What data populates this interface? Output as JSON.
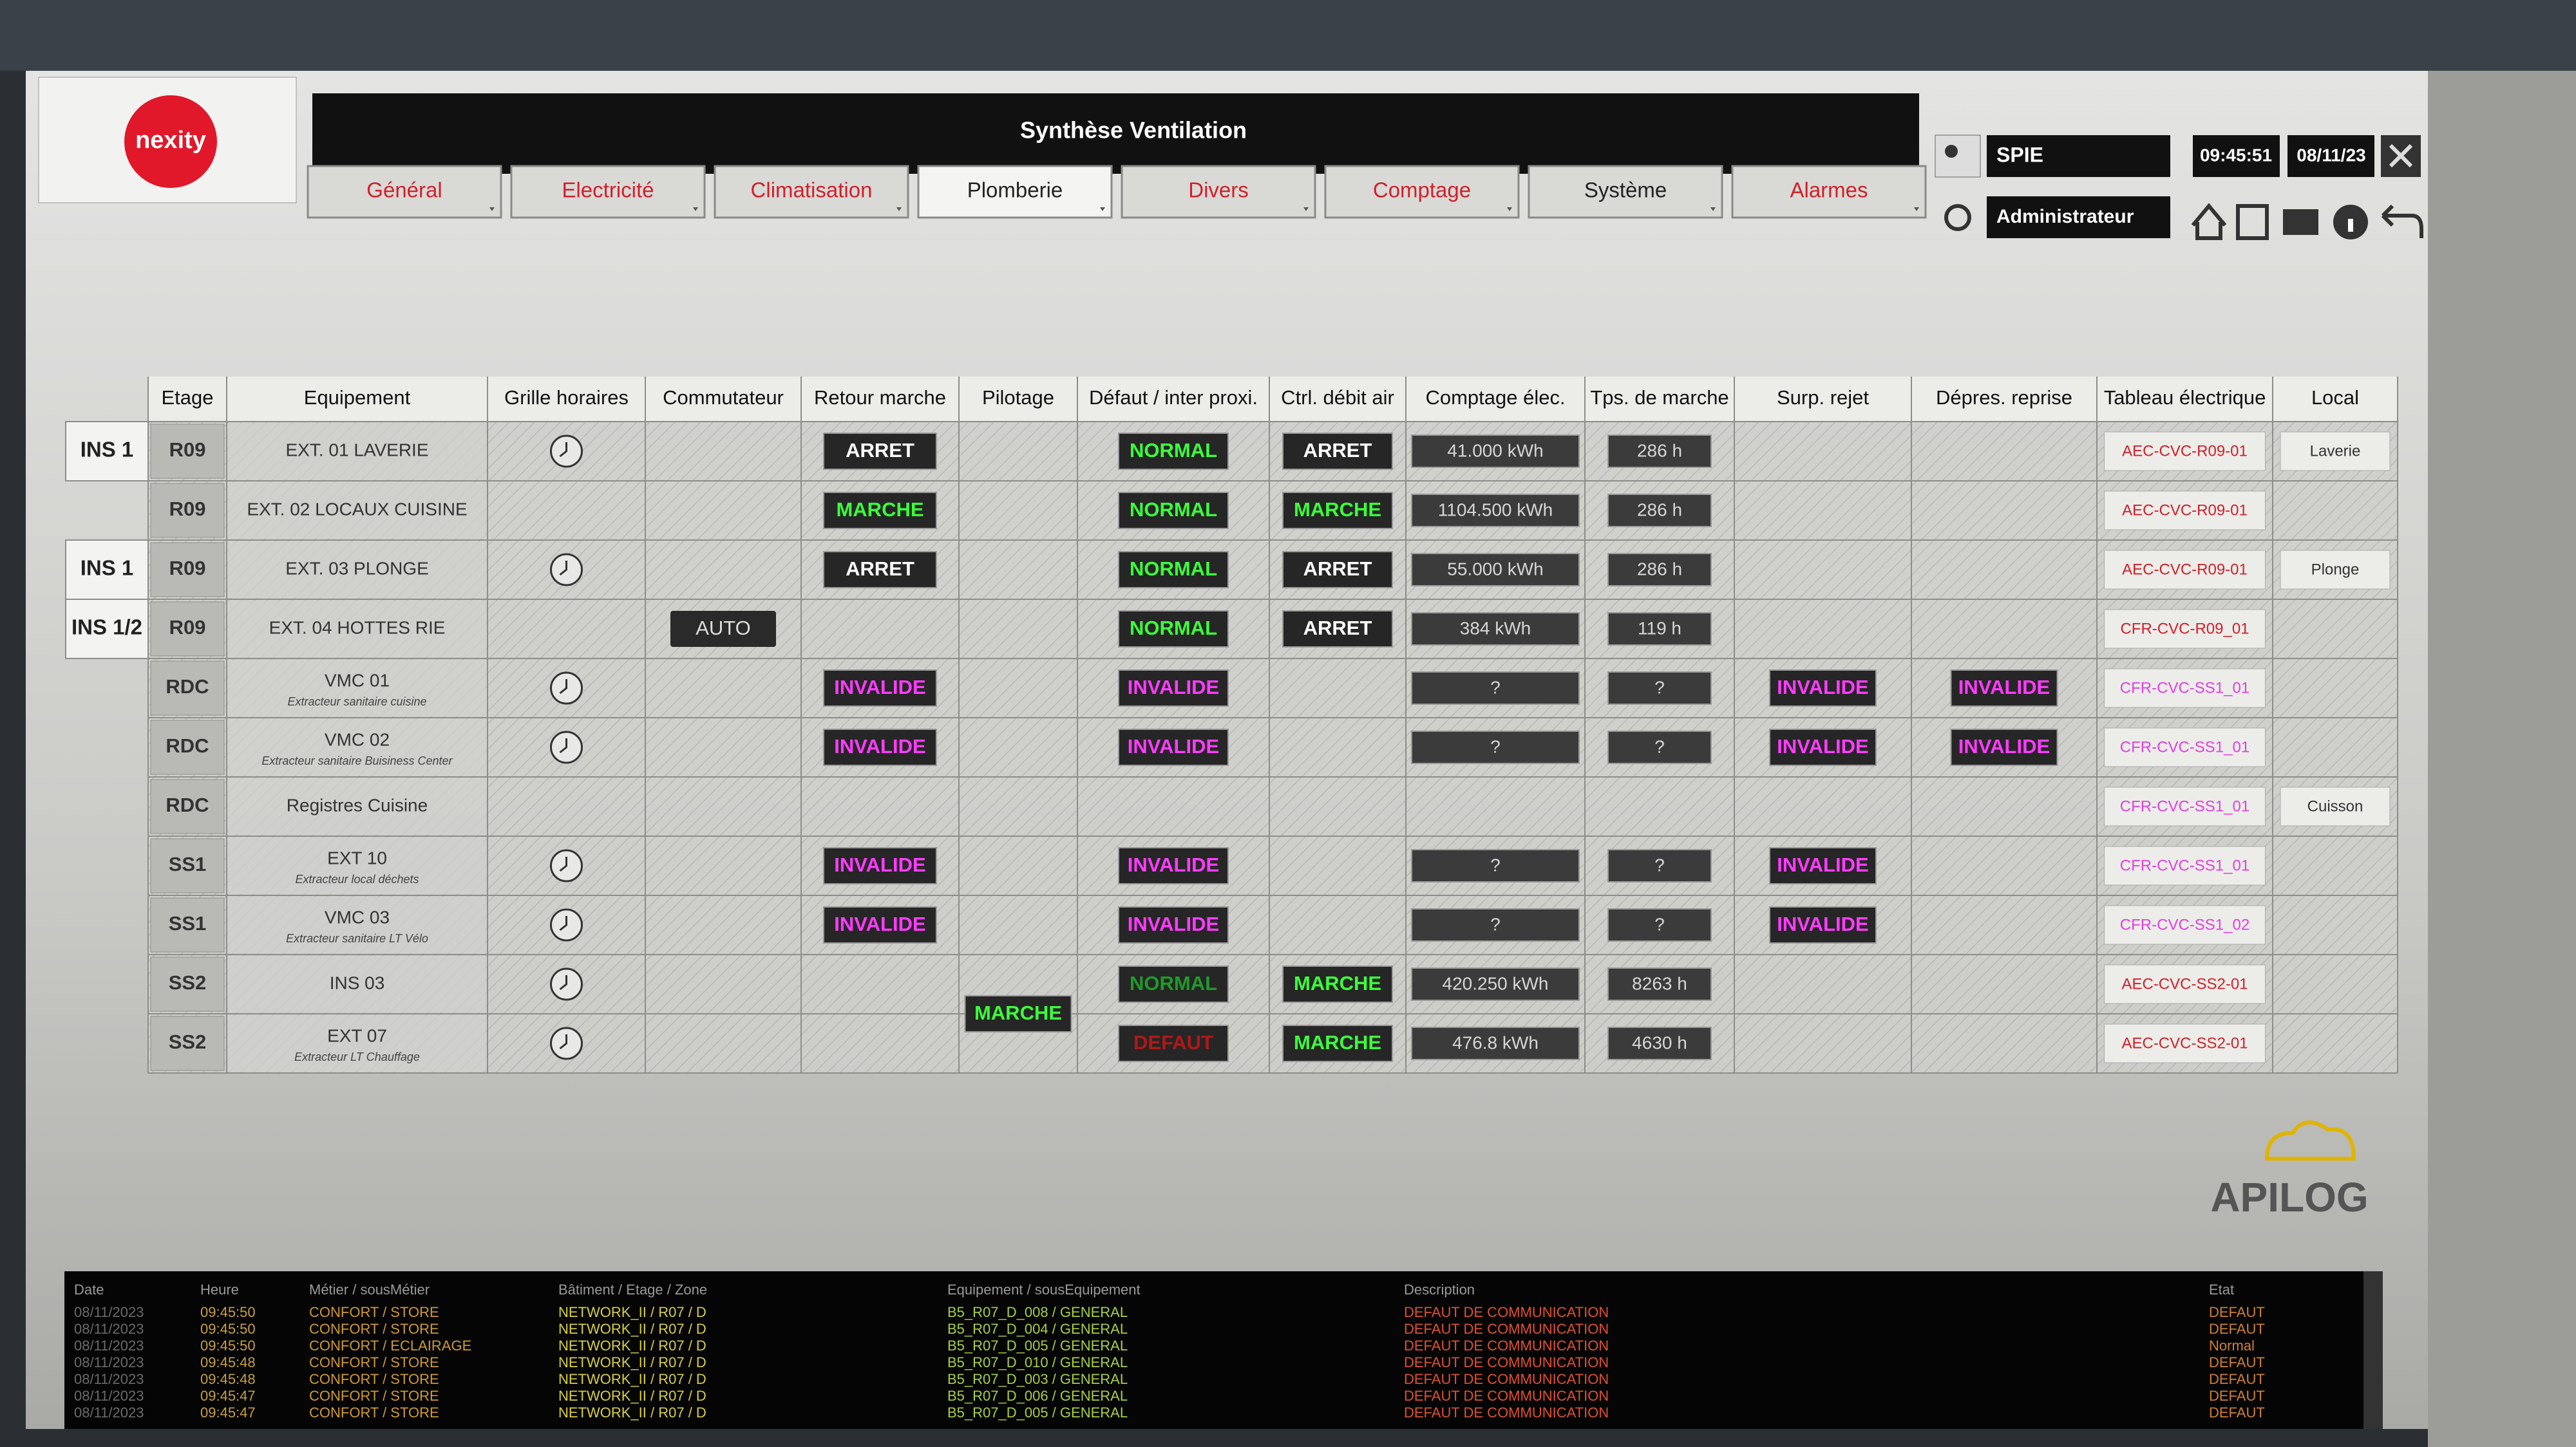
{
  "header": {
    "logo": "nexity",
    "title": "Synthèse Ventilation",
    "tabs": [
      {
        "label": "Général",
        "color": "#d0202a"
      },
      {
        "label": "Electricité",
        "color": "#d0202a"
      },
      {
        "label": "Climatisation",
        "color": "#d0202a"
      },
      {
        "label": "Plomberie",
        "color": "#222222"
      },
      {
        "label": "Divers",
        "color": "#d0202a"
      },
      {
        "label": "Comptage",
        "color": "#d0202a"
      },
      {
        "label": "Système",
        "color": "#222222"
      },
      {
        "label": "Alarmes",
        "color": "#d0202a"
      }
    ],
    "user": "SPIE",
    "role": "Administrateur",
    "time": "09:45:51",
    "date": "08/11/23"
  },
  "table": {
    "columns": [
      "Etage",
      "Equipement",
      "Grille horaires",
      "Commutateur",
      "Retour marche",
      "Pilotage",
      "Défaut / inter proxi.",
      "Ctrl. débit air",
      "Comptage élec.",
      "Tps. de marche",
      "Surp. rejet",
      "Dépres. reprise",
      "Tableau électrique",
      "Local"
    ],
    "rows": [
      {
        "ins": "INS 1",
        "etage": "R09",
        "equipement": "EXT. 01 LAVERIE",
        "clock": true,
        "retour": {
          "text": "ARRET",
          "color": "#ffffff"
        },
        "defaut": {
          "text": "NORMAL",
          "color": "#3cff3c"
        },
        "ctrl": {
          "text": "ARRET",
          "color": "#ffffff"
        },
        "comptage": "41.000 kWh",
        "tps": "286 h",
        "tableau": {
          "text": "AEC-CVC-R09-01",
          "color": "#d0202a"
        },
        "local": "Laverie"
      },
      {
        "etage": "R09",
        "equipement": "EXT. 02 LOCAUX CUISINE",
        "retour": {
          "text": "MARCHE",
          "color": "#3cff3c"
        },
        "defaut": {
          "text": "NORMAL",
          "color": "#3cff3c"
        },
        "ctrl": {
          "text": "MARCHE",
          "color": "#3cff3c"
        },
        "comptage": "1104.500 kWh",
        "tps": "286 h",
        "tableau": {
          "text": "AEC-CVC-R09-01",
          "color": "#d0202a"
        }
      },
      {
        "ins": "INS 1",
        "etage": "R09",
        "equipement": "EXT. 03 PLONGE",
        "clock": true,
        "retour": {
          "text": "ARRET",
          "color": "#ffffff"
        },
        "defaut": {
          "text": "NORMAL",
          "color": "#3cff3c"
        },
        "ctrl": {
          "text": "ARRET",
          "color": "#ffffff"
        },
        "comptage": "55.000 kWh",
        "tps": "286 h",
        "tableau": {
          "text": "AEC-CVC-R09-01",
          "color": "#d0202a"
        },
        "local": "Plonge"
      },
      {
        "ins": "INS 1/2",
        "etage": "R09",
        "equipement": "EXT. 04 HOTTES RIE",
        "commutateur": "AUTO",
        "defaut": {
          "text": "NORMAL",
          "color": "#3cff3c"
        },
        "ctrl": {
          "text": "ARRET",
          "color": "#ffffff"
        },
        "comptage": "384 kWh",
        "tps": "119 h",
        "tableau": {
          "text": "CFR-CVC-R09_01",
          "color": "#d0202a"
        }
      },
      {
        "etage": "RDC",
        "equipement": "VMC 01",
        "sub": "Extracteur sanitaire cuisine",
        "clock": true,
        "retour": {
          "text": "INVALIDE",
          "color": "#ff3cff"
        },
        "defaut": {
          "text": "INVALIDE",
          "color": "#ff3cff"
        },
        "comptage": "?",
        "tps": "?",
        "surp": {
          "text": "INVALIDE",
          "color": "#ff3cff"
        },
        "depres": {
          "text": "INVALIDE",
          "color": "#ff3cff"
        },
        "tableau": {
          "text": "CFR-CVC-SS1_01",
          "color": "#e040e0"
        }
      },
      {
        "etage": "RDC",
        "equipement": "VMC 02",
        "sub": "Extracteur sanitaire Buisiness Center",
        "clock": true,
        "retour": {
          "text": "INVALIDE",
          "color": "#ff3cff"
        },
        "defaut": {
          "text": "INVALIDE",
          "color": "#ff3cff"
        },
        "comptage": "?",
        "tps": "?",
        "surp": {
          "text": "INVALIDE",
          "color": "#ff3cff"
        },
        "depres": {
          "text": "INVALIDE",
          "color": "#ff3cff"
        },
        "tableau": {
          "text": "CFR-CVC-SS1_01",
          "color": "#e040e0"
        }
      },
      {
        "etage": "RDC",
        "equipement": "Registres Cuisine",
        "tableau": {
          "text": "CFR-CVC-SS1_01",
          "color": "#e040e0"
        },
        "local": "Cuisson"
      },
      {
        "etage": "SS1",
        "equipement": "EXT 10",
        "sub": "Extracteur local déchets",
        "clock": true,
        "retour": {
          "text": "INVALIDE",
          "color": "#ff3cff"
        },
        "defaut": {
          "text": "INVALIDE",
          "color": "#ff3cff"
        },
        "comptage": "?",
        "tps": "?",
        "surp": {
          "text": "INVALIDE",
          "color": "#ff3cff"
        },
        "tableau": {
          "text": "CFR-CVC-SS1_01",
          "color": "#e040e0"
        }
      },
      {
        "etage": "SS1",
        "equipement": "VMC 03",
        "sub": "Extracteur sanitaire LT Vélo",
        "clock": true,
        "retour": {
          "text": "INVALIDE",
          "color": "#ff3cff"
        },
        "defaut": {
          "text": "INVALIDE",
          "color": "#ff3cff"
        },
        "comptage": "?",
        "tps": "?",
        "surp": {
          "text": "INVALIDE",
          "color": "#ff3cff"
        },
        "tableau": {
          "text": "CFR-CVC-SS1_02",
          "color": "#e040e0"
        }
      },
      {
        "etage": "SS2",
        "equipement": "INS 03",
        "clock": true,
        "pilotage": {
          "text": "MARCHE",
          "color": "#3cff3c"
        },
        "defaut": {
          "text": "NORMAL",
          "color": "#1f9a2a"
        },
        "ctrl": {
          "text": "MARCHE",
          "color": "#3cff3c"
        },
        "comptage": "420.250 kWh",
        "tps": "8263 h",
        "tableau": {
          "text": "AEC-CVC-SS2-01",
          "color": "#d0202a"
        }
      },
      {
        "etage": "SS2",
        "equipement": "EXT 07",
        "sub": "Extracteur LT Chauffage",
        "clock": true,
        "defaut": {
          "text": "DEFAUT",
          "color": "#b01818"
        },
        "ctrl": {
          "text": "MARCHE",
          "color": "#3cff3c"
        },
        "comptage": "476.8 kWh",
        "tps": "4630 h",
        "tableau": {
          "text": "AEC-CVC-SS2-01",
          "color": "#d0202a"
        }
      }
    ]
  },
  "brand": {
    "name": "APILOG"
  },
  "events": {
    "columns": [
      "Date",
      "Heure",
      "Métier / sousMétier",
      "Bâtiment / Etage / Zone",
      "Equipement / sousEquipement",
      "Description",
      "Etat"
    ],
    "rows": [
      [
        "08/11/2023",
        "09:45:50",
        "CONFORT / STORE",
        "NETWORK_II / R07 / D",
        "B5_R07_D_008 / GENERAL",
        "DEFAUT DE COMMUNICATION",
        "DEFAUT"
      ],
      [
        "08/11/2023",
        "09:45:50",
        "CONFORT / STORE",
        "NETWORK_II / R07 / D",
        "B5_R07_D_004 / GENERAL",
        "DEFAUT DE COMMUNICATION",
        "DEFAUT"
      ],
      [
        "08/11/2023",
        "09:45:50",
        "CONFORT / ECLAIRAGE",
        "NETWORK_II / R07 / D",
        "B5_R07_D_005 / GENERAL",
        "DEFAUT DE COMMUNICATION",
        "Normal"
      ],
      [
        "08/11/2023",
        "09:45:48",
        "CONFORT / STORE",
        "NETWORK_II / R07 / D",
        "B5_R07_D_010 / GENERAL",
        "DEFAUT DE COMMUNICATION",
        "DEFAUT"
      ],
      [
        "08/11/2023",
        "09:45:48",
        "CONFORT / STORE",
        "NETWORK_II / R07 / D",
        "B5_R07_D_003 / GENERAL",
        "DEFAUT DE COMMUNICATION",
        "DEFAUT"
      ],
      [
        "08/11/2023",
        "09:45:47",
        "CONFORT / STORE",
        "NETWORK_II / R07 / D",
        "B5_R07_D_006 / GENERAL",
        "DEFAUT DE COMMUNICATION",
        "DEFAUT"
      ],
      [
        "08/11/2023",
        "09:45:47",
        "CONFORT / STORE",
        "NETWORK_II / R07 / D",
        "B5_R07_D_005 / GENERAL",
        "DEFAUT DE COMMUNICATION",
        "DEFAUT"
      ]
    ]
  }
}
